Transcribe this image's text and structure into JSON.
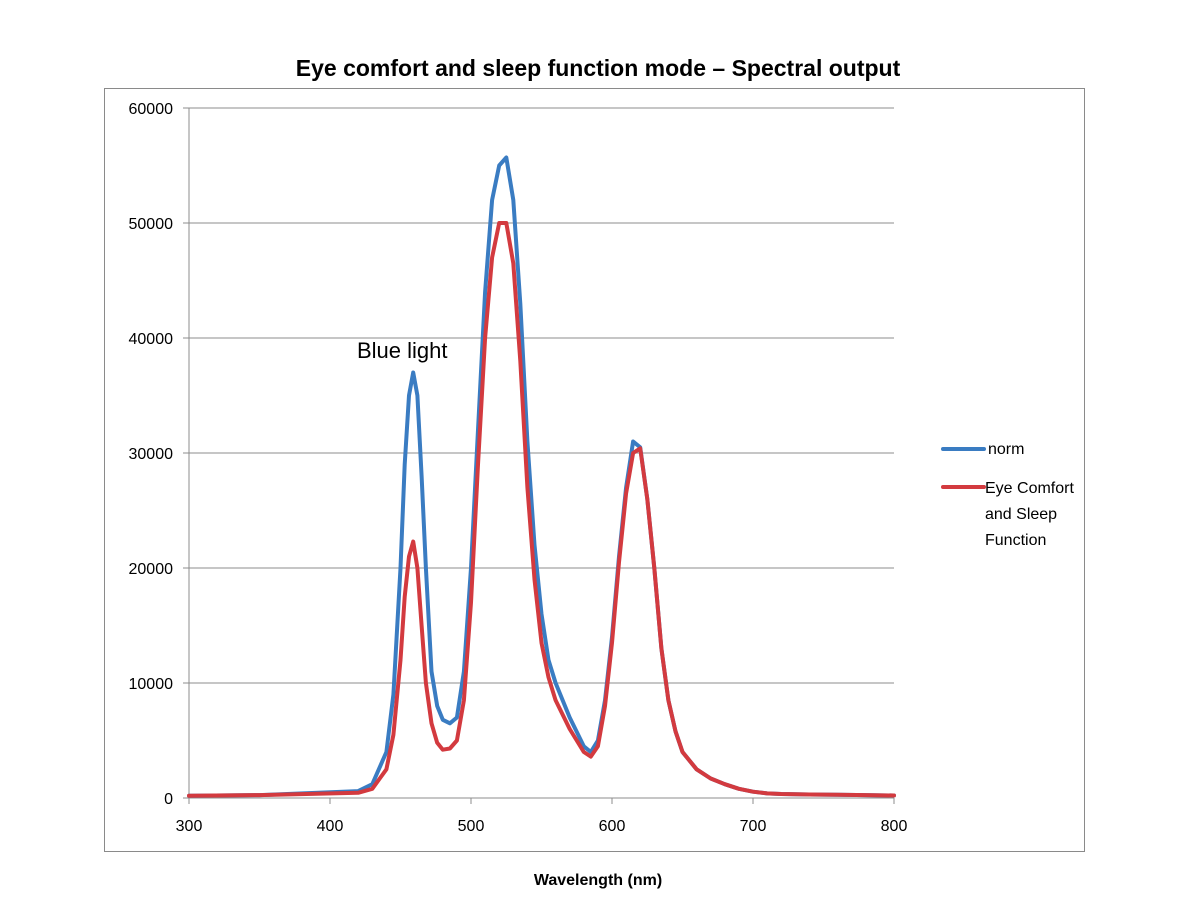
{
  "chart_data": {
    "type": "line",
    "title": "Eye comfort and sleep function mode – Spectral output",
    "xlabel": "Wavelength (nm)",
    "ylabel": "",
    "xlim": [
      300,
      800
    ],
    "ylim": [
      0,
      60000
    ],
    "x_ticks": [
      "300",
      "400",
      "500",
      "600",
      "700",
      "800"
    ],
    "y_ticks": [
      "0",
      "10000",
      "20000",
      "30000",
      "40000",
      "50000",
      "60000"
    ],
    "grid": true,
    "legend_position": "right",
    "annotation": "Blue light",
    "series": [
      {
        "name": "norm",
        "color": "#3a7cc2",
        "x": [
          300,
          350,
          420,
          430,
          440,
          445,
          450,
          453,
          456,
          459,
          462,
          465,
          468,
          472,
          476,
          480,
          485,
          490,
          495,
          500,
          505,
          510,
          515,
          520,
          525,
          530,
          535,
          540,
          545,
          550,
          555,
          560,
          570,
          580,
          585,
          590,
          595,
          600,
          605,
          610,
          615,
          620,
          625,
          630,
          635,
          640,
          645,
          650,
          660,
          670,
          680,
          690,
          700,
          710,
          720,
          740,
          760,
          780,
          800
        ],
        "y": [
          200,
          250,
          600,
          1200,
          4000,
          9000,
          20000,
          29000,
          35000,
          37000,
          35000,
          28000,
          20000,
          11000,
          8000,
          6800,
          6500,
          7000,
          11000,
          20000,
          32000,
          44000,
          52000,
          55000,
          55700,
          52000,
          43000,
          31000,
          22000,
          16000,
          12000,
          10000,
          7000,
          4500,
          4000,
          5000,
          8500,
          14000,
          21000,
          27000,
          31000,
          30500,
          26000,
          20000,
          13000,
          8500,
          5800,
          4000,
          2500,
          1700,
          1200,
          800,
          550,
          400,
          350,
          300,
          280,
          250,
          220
        ]
      },
      {
        "name": "Eye Comfort and Sleep Function",
        "color": "#d33a3f",
        "x": [
          300,
          350,
          420,
          430,
          440,
          445,
          450,
          453,
          456,
          459,
          462,
          465,
          468,
          472,
          476,
          480,
          485,
          490,
          495,
          500,
          505,
          510,
          515,
          520,
          525,
          530,
          535,
          540,
          545,
          550,
          555,
          560,
          570,
          580,
          585,
          590,
          595,
          600,
          605,
          610,
          615,
          620,
          625,
          630,
          635,
          640,
          645,
          650,
          660,
          670,
          680,
          690,
          700,
          710,
          720,
          740,
          760,
          780,
          800
        ],
        "y": [
          200,
          250,
          450,
          800,
          2500,
          5500,
          12000,
          17500,
          21000,
          22300,
          20000,
          15000,
          10000,
          6500,
          4800,
          4200,
          4300,
          5000,
          8500,
          17000,
          29000,
          40000,
          47000,
          50000,
          50000,
          46500,
          38000,
          27000,
          19000,
          13500,
          10500,
          8500,
          6000,
          4000,
          3600,
          4500,
          8000,
          13500,
          20500,
          26500,
          30000,
          30400,
          26000,
          20000,
          13000,
          8500,
          5800,
          4000,
          2500,
          1700,
          1200,
          800,
          550,
          400,
          350,
          300,
          280,
          250,
          220
        ]
      }
    ]
  }
}
